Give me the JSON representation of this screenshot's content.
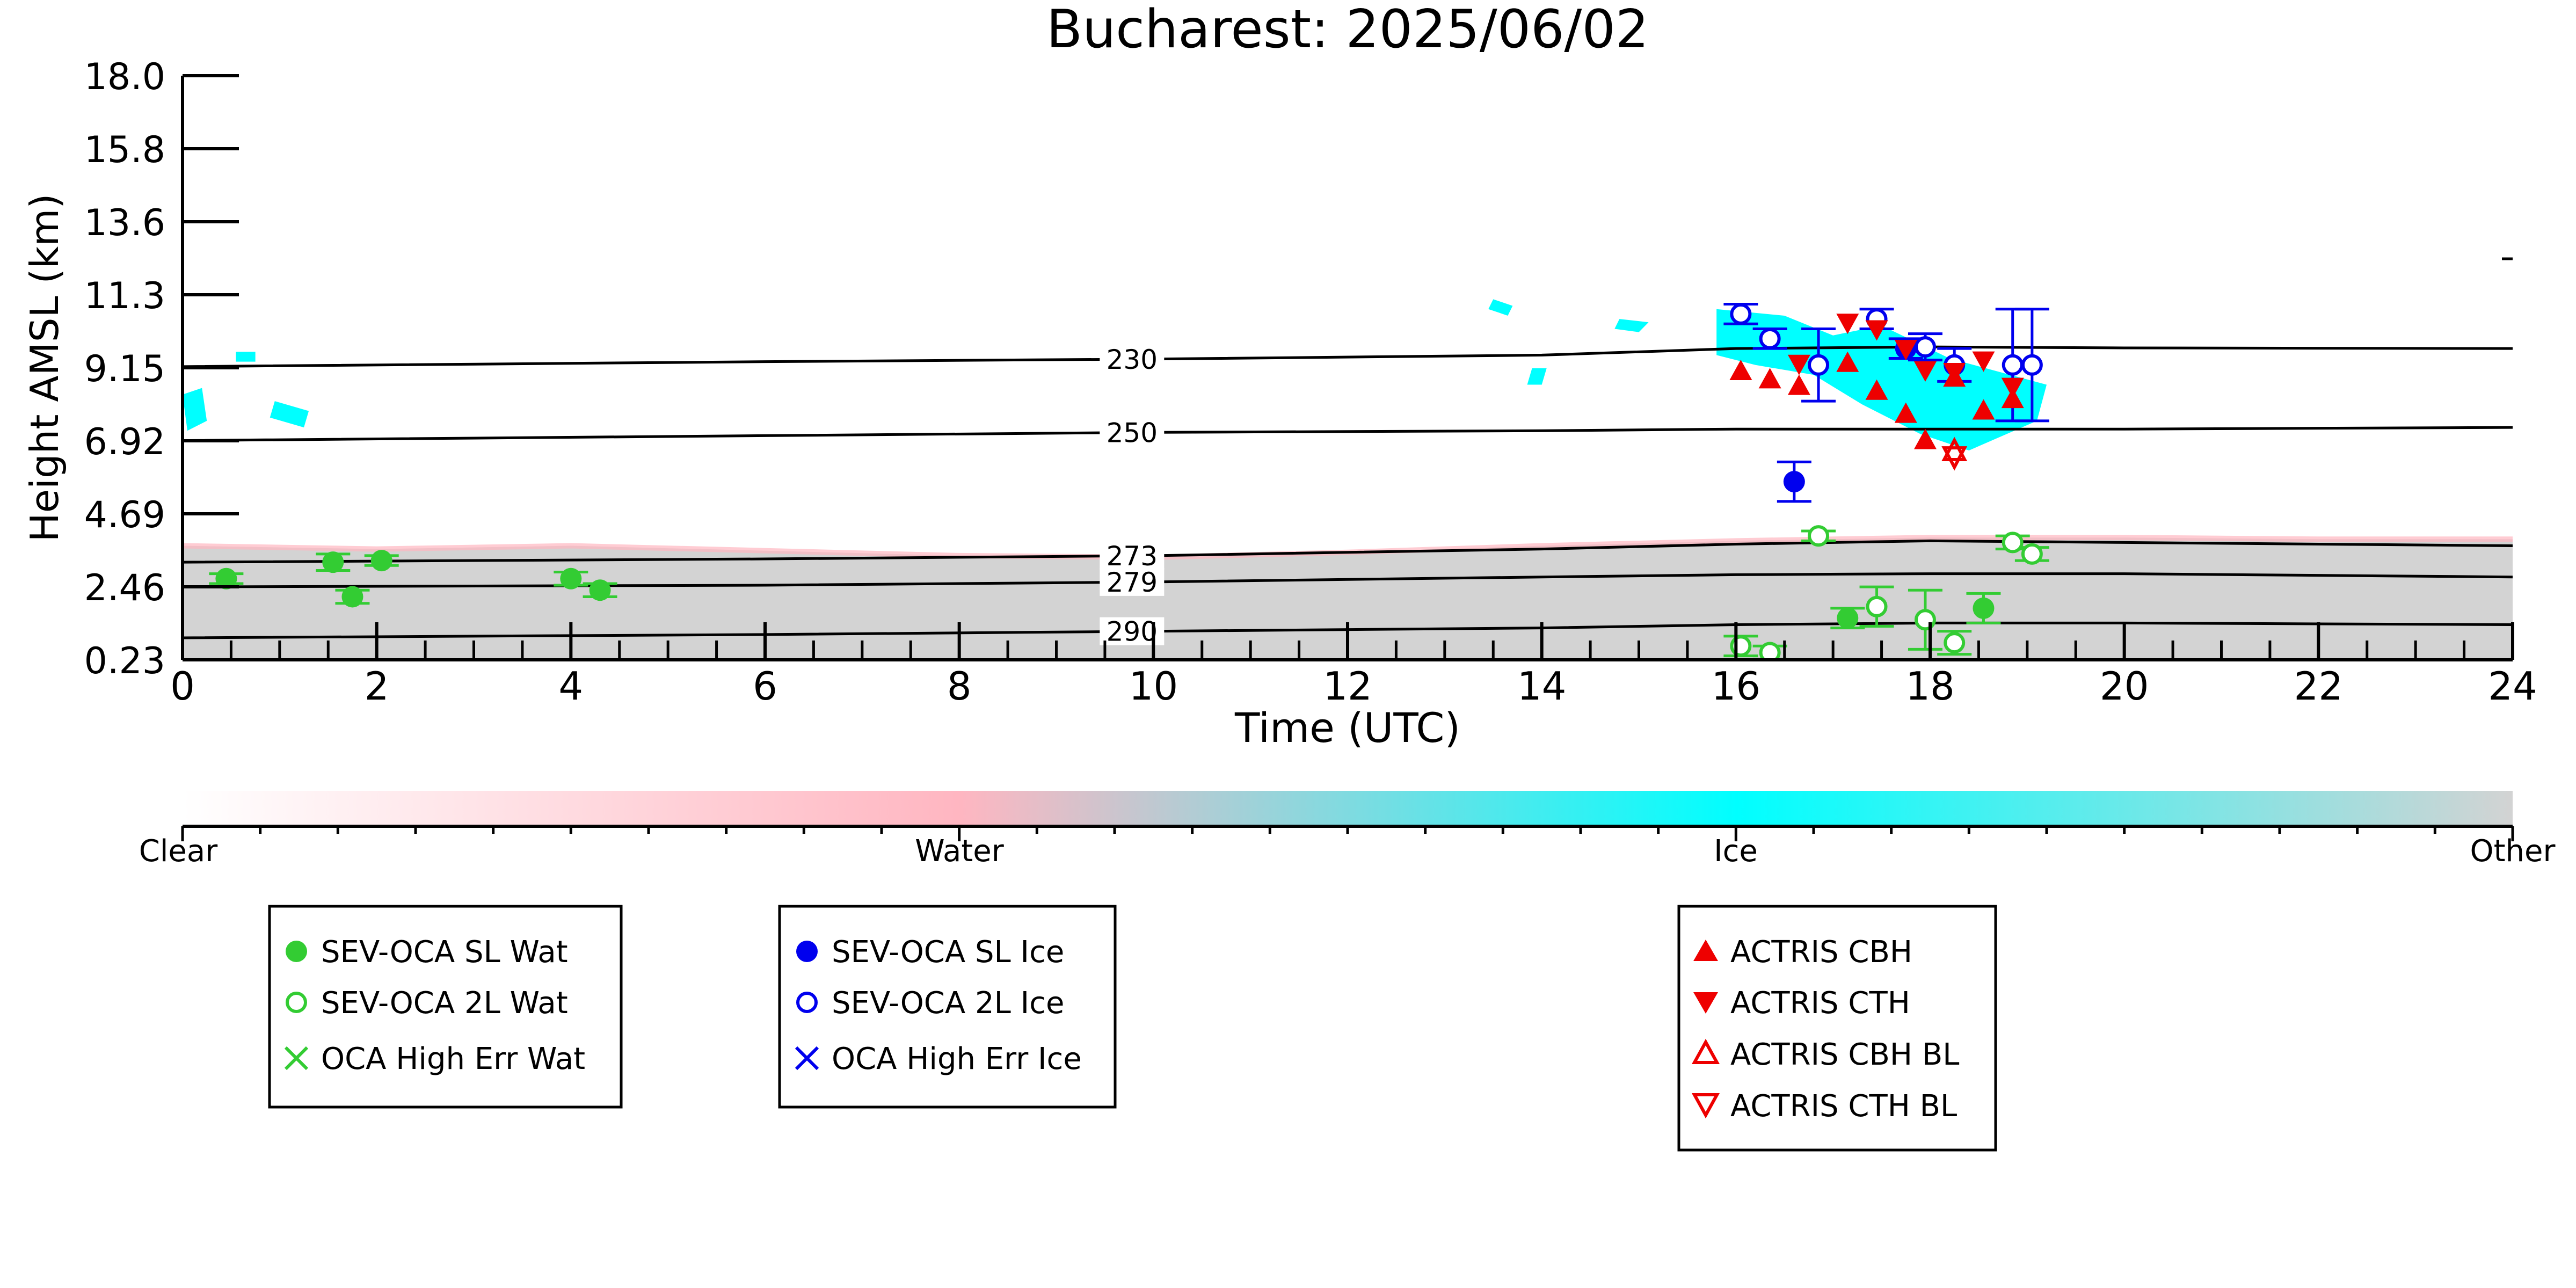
{
  "chart_data": {
    "type": "scatter",
    "title": "Bucharest: 2025/06/02",
    "xlabel": "Time (UTC)",
    "ylabel": "Height AMSL (km)",
    "xlim": [
      0,
      24
    ],
    "ylim": [
      0.23,
      18.0
    ],
    "x_ticks": [
      "0",
      "2",
      "4",
      "6",
      "8",
      "10",
      "12",
      "14",
      "16",
      "18",
      "20",
      "22",
      "24"
    ],
    "y_ticks": [
      "0.23",
      "2.46",
      "4.69",
      "6.92",
      "9.15",
      "11.3",
      "13.6",
      "15.8",
      "18.0"
    ],
    "colorbar": {
      "labels": [
        "Clear",
        "Water",
        "Ice",
        "Other"
      ],
      "colors": [
        "#ffffff",
        "#ffb6c1",
        "#00ffff",
        "#d3d3d3"
      ]
    },
    "isotherms": [
      {
        "label": "230",
        "x": [
          0,
          6,
          10,
          14,
          16,
          18,
          20,
          24
        ],
        "y": [
          9.15,
          9.3,
          9.38,
          9.5,
          9.7,
          9.75,
          9.72,
          9.7
        ]
      },
      {
        "label": "250",
        "x": [
          0,
          6,
          10,
          14,
          16,
          18,
          20,
          24
        ],
        "y": [
          6.9,
          7.05,
          7.15,
          7.2,
          7.25,
          7.25,
          7.25,
          7.3
        ]
      },
      {
        "label": "273",
        "x": [
          0,
          6,
          10,
          14,
          16,
          18,
          20,
          24
        ],
        "y": [
          3.2,
          3.3,
          3.4,
          3.6,
          3.75,
          3.85,
          3.8,
          3.7
        ]
      },
      {
        "label": "279",
        "x": [
          0,
          6,
          10,
          14,
          16,
          18,
          20,
          24
        ],
        "y": [
          2.45,
          2.5,
          2.6,
          2.75,
          2.82,
          2.85,
          2.85,
          2.75
        ]
      },
      {
        "label": "290",
        "x": [
          0,
          6,
          10,
          14,
          16,
          18,
          20,
          24
        ],
        "y": [
          0.9,
          1.0,
          1.1,
          1.2,
          1.3,
          1.35,
          1.35,
          1.3
        ]
      }
    ],
    "series": [
      {
        "name": "SEV-OCA SL Wat",
        "color": "#33cc33",
        "marker": "filled-circle",
        "x": [
          0.45,
          1.55,
          1.75,
          2.05,
          4.0,
          4.3,
          17.15,
          18.55
        ],
        "y": [
          2.7,
          3.2,
          2.15,
          3.25,
          2.7,
          2.35,
          1.5,
          1.8
        ],
        "err": [
          0.15,
          0.25,
          0.2,
          0.15,
          0.2,
          0.2,
          0.3,
          0.45
        ]
      },
      {
        "name": "SEV-OCA 2L Wat",
        "color": "#33cc33",
        "marker": "open-circle",
        "x": [
          16.05,
          16.35,
          16.85,
          17.45,
          17.95,
          18.25,
          18.85,
          19.05
        ],
        "y": [
          0.65,
          0.45,
          4.0,
          1.85,
          1.45,
          0.75,
          3.8,
          3.45
        ],
        "err": [
          0.3,
          0.2,
          0.15,
          0.6,
          0.9,
          0.35,
          0.2,
          0.2
        ]
      },
      {
        "name": "OCA High Err Wat",
        "color": "#33cc33",
        "marker": "x",
        "x": [],
        "y": []
      },
      {
        "name": "SEV-OCA SL Ice",
        "color": "#0000ee",
        "marker": "filled-circle",
        "x": [
          16.6,
          17.75
        ],
        "y": [
          5.65,
          9.7
        ],
        "err": [
          0.6,
          0.3
        ]
      },
      {
        "name": "SEV-OCA 2L Ice",
        "color": "#0000ee",
        "marker": "open-circle",
        "x": [
          16.05,
          16.35,
          16.85,
          17.45,
          17.95,
          18.25,
          18.85,
          19.05
        ],
        "y": [
          10.75,
          10.0,
          9.2,
          10.6,
          9.75,
          9.2,
          9.2,
          9.2
        ],
        "err": [
          0.3,
          0.3,
          1.1,
          0.3,
          0.4,
          0.5,
          1.7,
          1.7
        ]
      },
      {
        "name": "OCA High Err Ice",
        "color": "#0000ee",
        "marker": "x",
        "x": [],
        "y": []
      },
      {
        "name": "ACTRIS CBH",
        "color": "#ee0000",
        "marker": "triangle-up",
        "x": [
          16.05,
          16.35,
          16.65,
          17.15,
          17.45,
          17.75,
          17.95,
          18.25,
          18.55,
          18.85
        ],
        "y": [
          9.0,
          8.75,
          8.55,
          9.25,
          8.4,
          7.7,
          6.9,
          8.8,
          7.8,
          8.15
        ]
      },
      {
        "name": "ACTRIS CTH",
        "color": "#ee0000",
        "marker": "triangle-down",
        "x": [
          16.65,
          17.15,
          17.45,
          17.75,
          17.95,
          18.25,
          18.55,
          18.85
        ],
        "y": [
          9.25,
          10.5,
          10.3,
          9.7,
          9.05,
          9.0,
          9.35,
          8.55
        ]
      },
      {
        "name": "ACTRIS CBH BL",
        "color": "#ee0000",
        "marker": "open-triangle-up",
        "x": [
          18.25
        ],
        "y": [
          6.55
        ]
      },
      {
        "name": "ACTRIS CTH BL",
        "color": "#ee0000",
        "marker": "open-triangle-down",
        "x": [
          18.25
        ],
        "y": [
          6.45
        ]
      }
    ],
    "legends": [
      [
        "SEV-OCA SL Wat",
        "SEV-OCA 2L Wat",
        "OCA High Err Wat"
      ],
      [
        "SEV-OCA SL Ice",
        "SEV-OCA 2L Ice",
        "OCA High Err Ice"
      ],
      [
        "ACTRIS CBH",
        "ACTRIS CTH",
        "ACTRIS CBH BL",
        "ACTRIS CTH BL"
      ]
    ],
    "background": {
      "gray_layer_top": [
        [
          0,
          3.7
        ],
        [
          2,
          3.6
        ],
        [
          4,
          3.7
        ],
        [
          6,
          3.55
        ],
        [
          8,
          3.4
        ],
        [
          10,
          3.35
        ],
        [
          12,
          3.5
        ],
        [
          14,
          3.7
        ],
        [
          16,
          3.85
        ],
        [
          18,
          3.95
        ],
        [
          20,
          3.95
        ],
        [
          22,
          3.9
        ],
        [
          24,
          3.9
        ]
      ],
      "ice_regions": [
        [
          [
            15.8,
            10.9
          ],
          [
            16.5,
            10.7
          ],
          [
            17.0,
            10.1
          ],
          [
            17.5,
            10.4
          ],
          [
            18.2,
            9.4
          ],
          [
            19.2,
            8.6
          ],
          [
            19.1,
            7.5
          ],
          [
            18.4,
            6.6
          ],
          [
            17.9,
            7.1
          ],
          [
            17.3,
            8.0
          ],
          [
            16.8,
            8.9
          ],
          [
            16.2,
            9.2
          ],
          [
            15.8,
            9.5
          ]
        ],
        [
          [
            0.0,
            8.3
          ],
          [
            0.2,
            8.5
          ],
          [
            0.25,
            7.5
          ],
          [
            0.05,
            7.2
          ]
        ],
        [
          [
            0.55,
            9.6
          ],
          [
            0.75,
            9.6
          ],
          [
            0.75,
            9.3
          ],
          [
            0.55,
            9.3
          ]
        ],
        [
          [
            0.95,
            8.1
          ],
          [
            1.3,
            7.8
          ],
          [
            1.25,
            7.3
          ],
          [
            0.9,
            7.6
          ]
        ],
        [
          [
            13.5,
            11.2
          ],
          [
            13.7,
            11.0
          ],
          [
            13.65,
            10.7
          ],
          [
            13.45,
            10.9
          ]
        ],
        [
          [
            13.9,
            9.1
          ],
          [
            14.05,
            9.1
          ],
          [
            14.0,
            8.6
          ],
          [
            13.85,
            8.6
          ]
        ],
        [
          [
            14.8,
            10.6
          ],
          [
            15.1,
            10.5
          ],
          [
            15.0,
            10.2
          ],
          [
            14.75,
            10.3
          ]
        ]
      ]
    }
  }
}
